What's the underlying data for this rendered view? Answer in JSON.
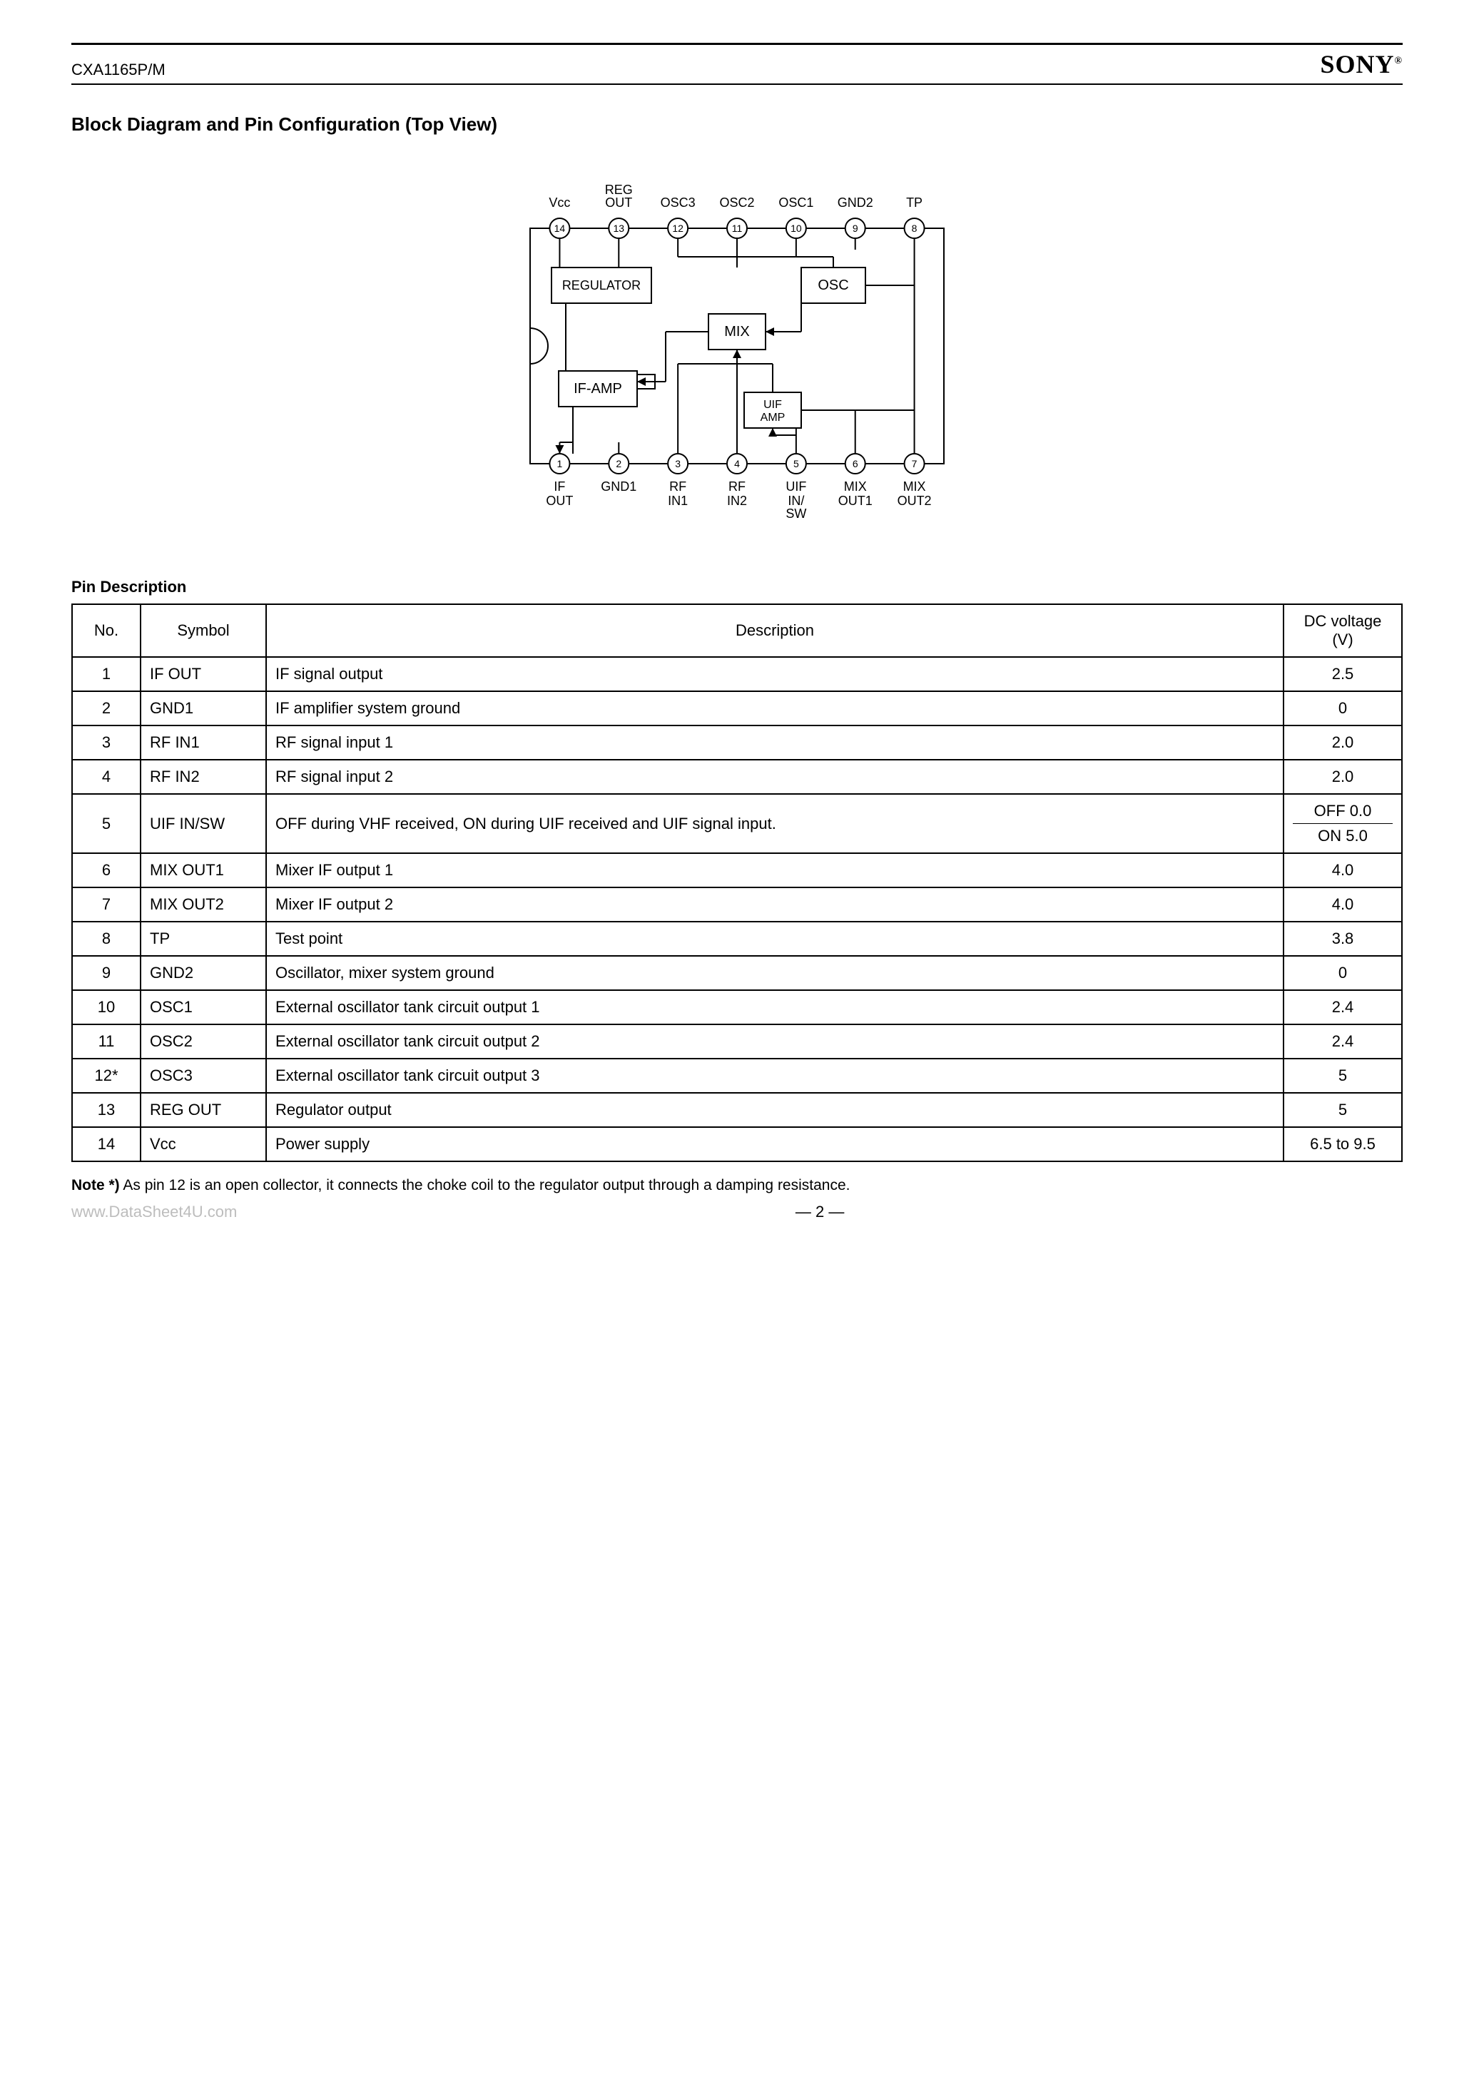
{
  "header": {
    "part_number": "CXA1165P/M",
    "brand": "SONY",
    "brand_tm": "®"
  },
  "section_title": "Block Diagram and Pin Configuration (Top View)",
  "diagram": {
    "top_labels": [
      "Vcc",
      "REG\nOUT",
      "OSC3",
      "OSC2",
      "OSC1",
      "GND2",
      "TP"
    ],
    "top_pins": [
      "14",
      "13",
      "12",
      "11",
      "10",
      "9",
      "8"
    ],
    "bottom_pins": [
      "1",
      "2",
      "3",
      "4",
      "5",
      "6",
      "7"
    ],
    "bottom_labels_l1": [
      "IF",
      "GND1",
      "RF",
      "RF",
      "UIF",
      "MIX",
      "MIX"
    ],
    "bottom_labels_l2": [
      "OUT",
      "",
      "IN1",
      "IN2",
      "IN/",
      "OUT1",
      "OUT2"
    ],
    "bottom_labels_l3": [
      "",
      "",
      "",
      "",
      "SW",
      "",
      ""
    ],
    "blocks": {
      "regulator": "REGULATOR",
      "osc": "OSC",
      "mix": "MIX",
      "ifamp": "IF-AMP",
      "uifamp_l1": "UIF",
      "uifamp_l2": "AMP"
    },
    "colors": {
      "stroke": "#000000",
      "fill": "#ffffff",
      "text": "#000000"
    },
    "font_size_label": 18,
    "font_size_block": 20,
    "pin_radius": 14,
    "line_width": 2
  },
  "pin_desc_title": "Pin Description",
  "table": {
    "headers": {
      "no": "No.",
      "symbol": "Symbol",
      "desc": "Description",
      "volt": "DC voltage\n(V)"
    },
    "rows": [
      {
        "no": "1",
        "sym": "IF OUT",
        "desc": "IF signal output",
        "volt": "2.5"
      },
      {
        "no": "2",
        "sym": "GND1",
        "desc": "IF amplifier system ground",
        "volt": "0"
      },
      {
        "no": "3",
        "sym": "RF IN1",
        "desc": "RF signal input 1",
        "volt": "2.0"
      },
      {
        "no": "4",
        "sym": "RF IN2",
        "desc": "RF signal input 2",
        "volt": "2.0"
      },
      {
        "no": "5",
        "sym": "UIF IN/SW",
        "desc": "OFF during VHF received, ON during UIF received and UIF signal input.",
        "volt": "OFF 0.0|ON  5.0"
      },
      {
        "no": "6",
        "sym": "MIX OUT1",
        "desc": "Mixer IF output 1",
        "volt": "4.0"
      },
      {
        "no": "7",
        "sym": "MIX OUT2",
        "desc": "Mixer IF output 2",
        "volt": "4.0"
      },
      {
        "no": "8",
        "sym": "TP",
        "desc": "Test point",
        "volt": "3.8"
      },
      {
        "no": "9",
        "sym": "GND2",
        "desc": "Oscillator, mixer system ground",
        "volt": "0"
      },
      {
        "no": "10",
        "sym": "OSC1",
        "desc": "External oscillator tank circuit output 1",
        "volt": "2.4"
      },
      {
        "no": "11",
        "sym": "OSC2",
        "desc": "External oscillator tank circuit output 2",
        "volt": "2.4"
      },
      {
        "no": "12*",
        "sym": "OSC3",
        "desc": "External oscillator tank circuit output 3",
        "volt": "5"
      },
      {
        "no": "13",
        "sym": "REG OUT",
        "desc": "Regulator output",
        "volt": "5"
      },
      {
        "no": "14",
        "sym": "Vcc",
        "desc": "Power supply",
        "volt": "6.5 to 9.5"
      }
    ]
  },
  "note": {
    "label": "Note *)",
    "text": "As pin 12 is an open collector, it connects the choke coil to the regulator output through a damping resistance."
  },
  "footer_url": "www.DataSheet4U.com",
  "page_number": "— 2 —"
}
